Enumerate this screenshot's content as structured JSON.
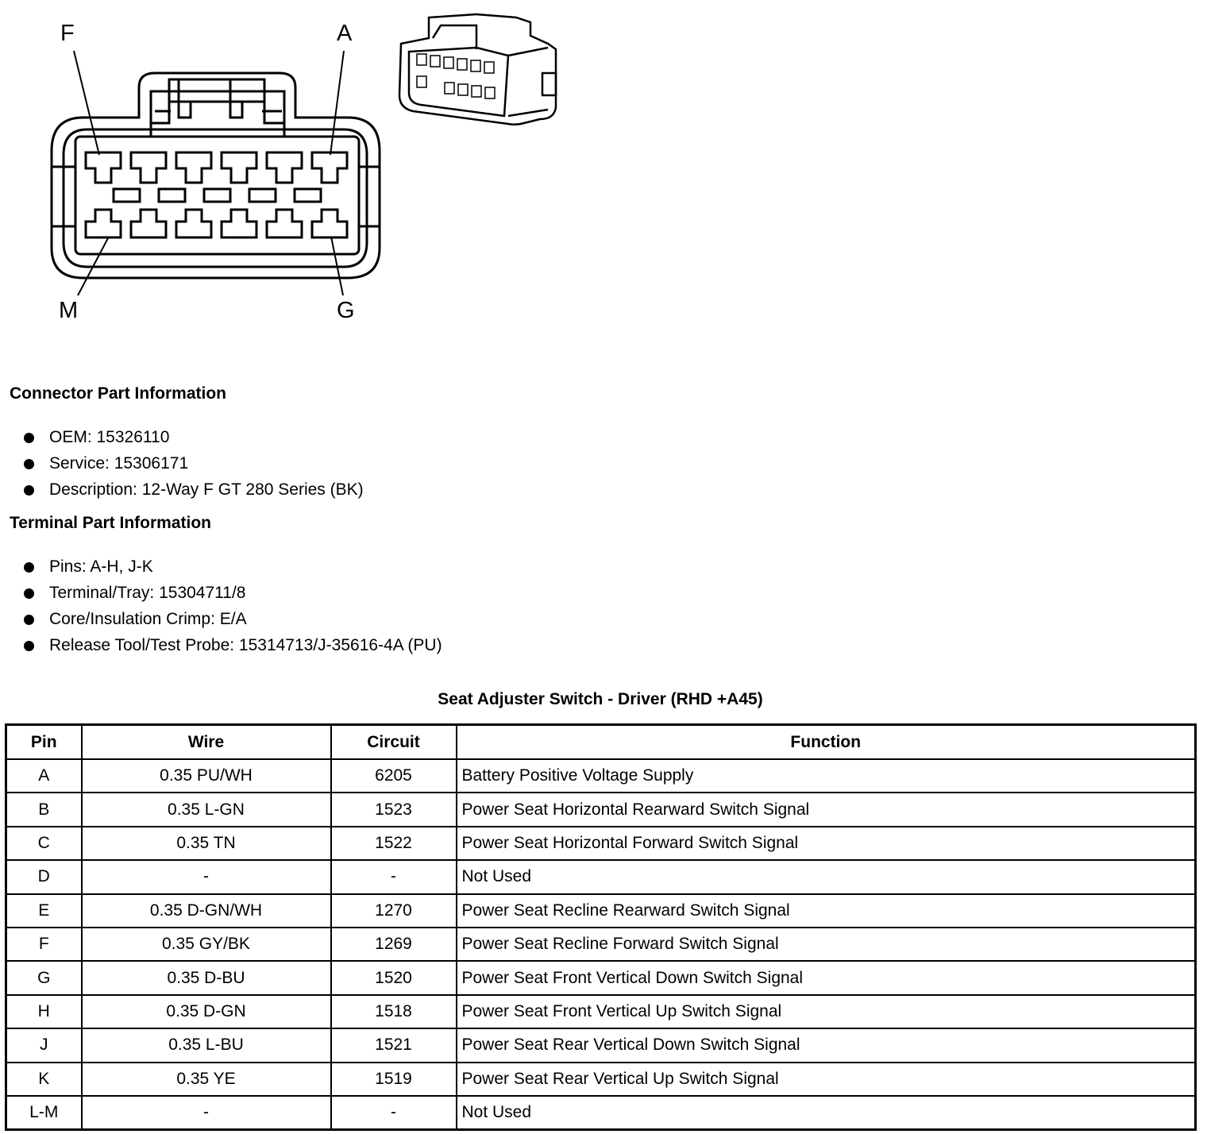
{
  "diagram": {
    "pin_labels": {
      "top_left": "F",
      "top_right": "A",
      "bottom_left": "M",
      "bottom_right": "G"
    }
  },
  "connector_info": {
    "heading": "Connector Part Information",
    "items": [
      "OEM: 15326110",
      "Service: 15306171",
      "Description: 12-Way F GT 280 Series (BK)"
    ]
  },
  "terminal_info": {
    "heading": "Terminal Part Information",
    "items": [
      "Pins: A-H, J-K",
      "Terminal/Tray: 15304711/8",
      "Core/Insulation Crimp: E/A",
      "Release Tool/Test Probe: 15314713/J-35616-4A (PU)"
    ]
  },
  "table": {
    "title": "Seat Adjuster Switch - Driver (RHD +A45)",
    "headers": [
      "Pin",
      "Wire",
      "Circuit",
      "Function"
    ],
    "rows": [
      [
        "A",
        "0.35 PU/WH",
        "6205",
        "Battery Positive Voltage Supply"
      ],
      [
        "B",
        "0.35 L-GN",
        "1523",
        "Power Seat Horizontal Rearward Switch Signal"
      ],
      [
        "C",
        "0.35 TN",
        "1522",
        "Power Seat Horizontal Forward Switch Signal"
      ],
      [
        "D",
        "-",
        "-",
        "Not Used"
      ],
      [
        "E",
        "0.35 D-GN/WH",
        "1270",
        "Power Seat Recline Rearward Switch Signal"
      ],
      [
        "F",
        "0.35 GY/BK",
        "1269",
        "Power Seat Recline Forward Switch Signal"
      ],
      [
        "G",
        "0.35 D-BU",
        "1520",
        "Power Seat Front Vertical Down Switch Signal"
      ],
      [
        "H",
        "0.35 D-GN",
        "1518",
        "Power Seat Front Vertical Up Switch Signal"
      ],
      [
        "J",
        "0.35 L-BU",
        "1521",
        "Power Seat Rear Vertical Down Switch Signal"
      ],
      [
        "K",
        "0.35 YE",
        "1519",
        "Power Seat Rear Vertical Up Switch Signal"
      ],
      [
        "L-M",
        "-",
        "-",
        "Not Used"
      ]
    ]
  }
}
